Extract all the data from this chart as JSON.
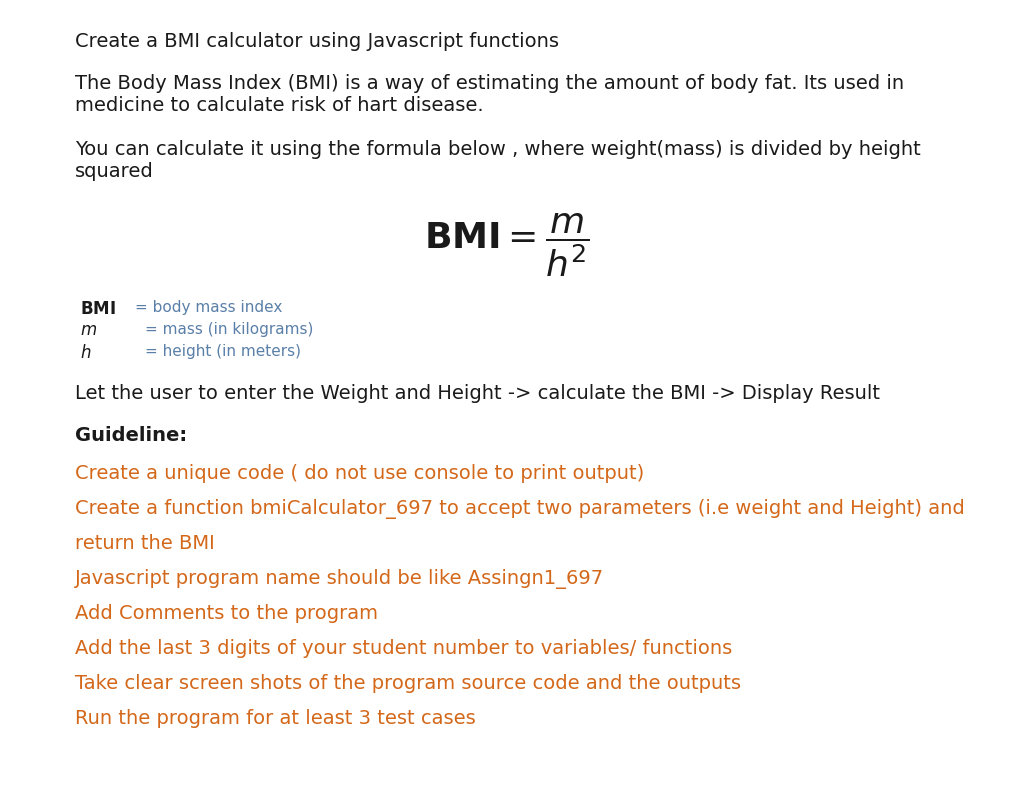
{
  "background_color": "#ffffff",
  "title_line": "Create a BMI calculator using Javascript functions",
  "para1_line1": "The Body Mass Index (BMI) is a way of estimating the amount of body fat. Its used in",
  "para1_line2": "medicine to calculate risk of hart disease.",
  "para2_line1": "You can calculate it using the formula below , where weight(mass) is divided by height",
  "para2_line2": "squared",
  "legend_desc_color": "#5a7fa8",
  "legend_bmi_desc": "= body mass index",
  "legend_m_desc": "= mass (in kilograms)",
  "legend_h_desc": "= height (in meters)",
  "instruction": "Let the user to enter the Weight and Height -> calculate the BMI -> Display Result",
  "guideline_label": "Guideline:",
  "guideline_items": [
    "Create a unique code ( do not use console to print output)",
    "Create a function bmiCalculator_697 to accept two parameters (i.e weight and Height) and",
    "return the BMI",
    "Javascript program name should be like Assingn1_697",
    "Add Comments to the program",
    "Add the last 3 digits of your student number to variables/ functions",
    "Take clear screen shots of the program source code and the outputs",
    "Run the program for at least 3 test cases"
  ],
  "guideline_colors": [
    "#d4681a",
    "#d4681a",
    "#d4681a",
    "#d4681a",
    "#d4681a",
    "#d4681a",
    "#d4681a",
    "#d4681a"
  ],
  "text_color": "#1a1a1a",
  "font_size_body": 14,
  "font_size_formula": 26,
  "font_size_legend_sym": 12,
  "font_size_legend_desc": 11
}
